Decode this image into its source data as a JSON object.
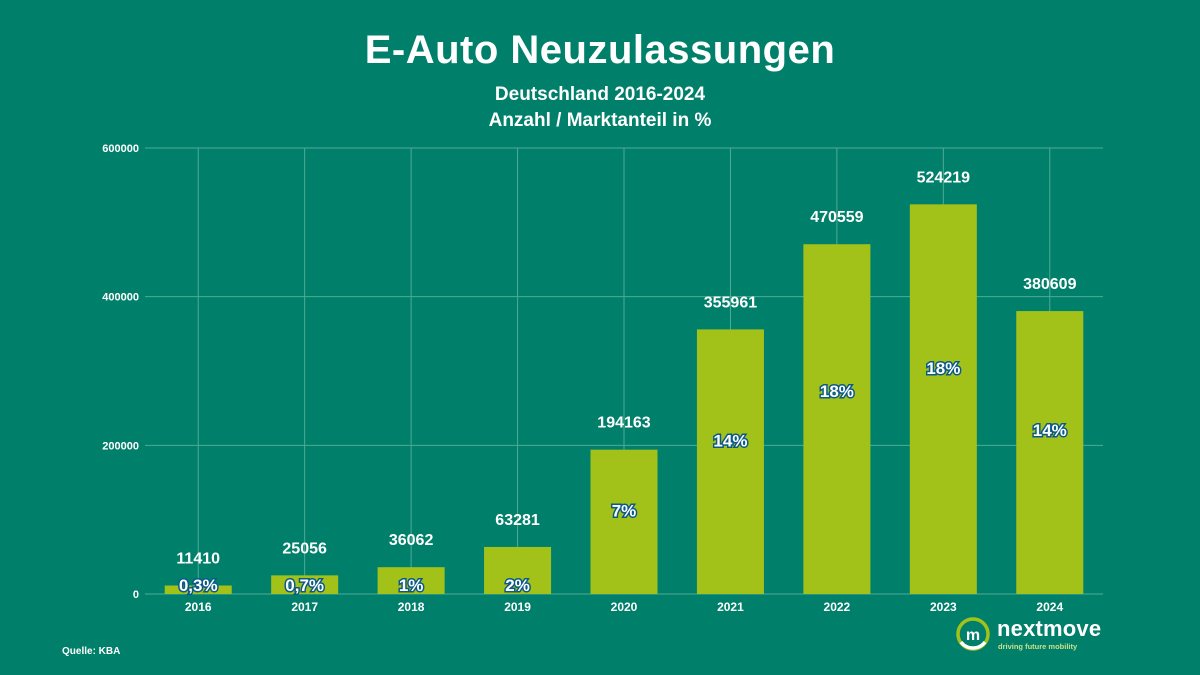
{
  "header": {
    "title": "E-Auto Neuzulassungen",
    "subtitle_line1": "Deutschland 2016-2024",
    "subtitle_line2": "Anzahl / Marktanteil in %"
  },
  "footer": {
    "source": "Quelle: KBA",
    "brand_name": "nextmove",
    "brand_tagline": "driving future mobility",
    "brand_mark_letter": "m"
  },
  "colors": {
    "background": "#00806a",
    "bar": "#a2c21a",
    "grid": "#4faa95",
    "text": "#ffffff",
    "share_stroke": "#0b5a86"
  },
  "chart_data": {
    "type": "bar",
    "title": "E-Auto Neuzulassungen",
    "xlabel": "",
    "ylabel": "",
    "ylim": [
      0,
      600000
    ],
    "yticks": [
      0,
      200000,
      400000,
      600000
    ],
    "ytick_labels": [
      "0",
      "200000",
      "400000",
      "600000"
    ],
    "grid": true,
    "categories": [
      "2016",
      "2017",
      "2018",
      "2019",
      "2020",
      "2021",
      "2022",
      "2023",
      "2024"
    ],
    "values": [
      11410,
      25056,
      36062,
      63281,
      194163,
      355961,
      470559,
      524219,
      380609
    ],
    "value_labels": [
      "11410",
      "25056",
      "36062",
      "63281",
      "194163",
      "355961",
      "470559",
      "524219",
      "380609"
    ],
    "share_labels": [
      "0,3%",
      "0,7%",
      "1%",
      "2%",
      "7%",
      "14%",
      "18%",
      "18%",
      "14%"
    ]
  }
}
